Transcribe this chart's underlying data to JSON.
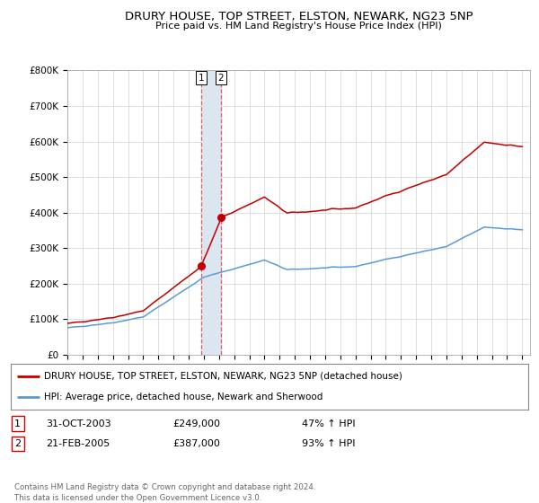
{
  "title": "DRURY HOUSE, TOP STREET, ELSTON, NEWARK, NG23 5NP",
  "subtitle": "Price paid vs. HM Land Registry's House Price Index (HPI)",
  "ylim": [
    0,
    800000
  ],
  "xlim_start": 1995.0,
  "xlim_end": 2025.5,
  "sale1_date": 2003.83,
  "sale1_price": 249000,
  "sale2_date": 2005.13,
  "sale2_price": 387000,
  "sale1_date_str": "31-OCT-2003",
  "sale2_date_str": "21-FEB-2005",
  "sale1_hpi_pct": "47% ↑ HPI",
  "sale2_hpi_pct": "93% ↑ HPI",
  "legend_line1": "DRURY HOUSE, TOP STREET, ELSTON, NEWARK, NG23 5NP (detached house)",
  "legend_line2": "HPI: Average price, detached house, Newark and Sherwood",
  "footer": "Contains HM Land Registry data © Crown copyright and database right 2024.\nThis data is licensed under the Open Government Licence v3.0.",
  "line_color_hpi": "#5b9bd5",
  "line_color_prop": "#c00000",
  "bg_color": "#ffffff",
  "grid_color": "#d0d0d0",
  "vline_color": "#e06060",
  "highlight_color": "#dce6f1"
}
